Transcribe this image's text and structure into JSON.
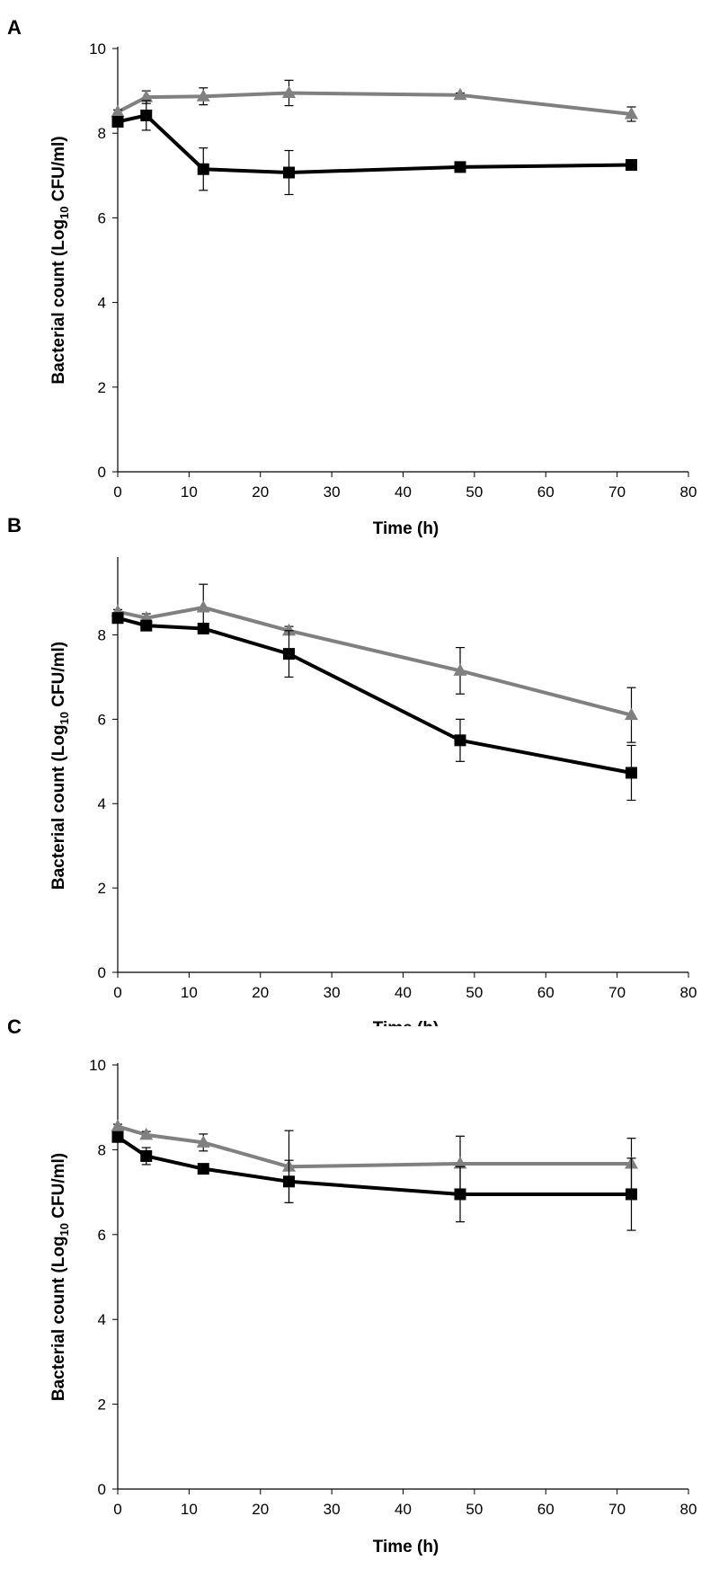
{
  "chart_data": [
    {
      "type": "line",
      "panel_label": "A",
      "xlabel": "Time (h)",
      "ylabel_main": "Bacterial count (Log",
      "ylabel_sub": "10",
      "ylabel_end": " CFU/ml)",
      "xlim": [
        0,
        80
      ],
      "ylim": [
        0,
        10
      ],
      "xticks": [
        "0",
        "10",
        "20",
        "30",
        "40",
        "50",
        "60",
        "70",
        "80"
      ],
      "yticks": [
        "0",
        "2",
        "4",
        "6",
        "8",
        "10"
      ],
      "x": [
        0,
        4,
        12,
        24,
        48,
        72
      ],
      "series": [
        {
          "name": "gray-triangle-series",
          "color": "#808080",
          "marker": "triangle",
          "values": [
            8.5,
            8.85,
            8.87,
            8.95,
            8.9,
            8.45
          ],
          "errors": [
            0.05,
            0.15,
            0.2,
            0.3,
            0.05,
            0.17
          ]
        },
        {
          "name": "black-square-series",
          "color": "#000000",
          "marker": "square",
          "values": [
            8.27,
            8.42,
            7.15,
            7.07,
            7.2,
            7.25
          ],
          "errors": [
            0.08,
            0.35,
            0.5,
            0.52,
            0.05,
            0.05
          ]
        }
      ]
    },
    {
      "type": "line",
      "panel_label": "B",
      "xlabel": "Time (h)",
      "ylabel_main": "Bacterial count (Log",
      "ylabel_sub": "10",
      "ylabel_end": " CFU/ml)",
      "xlim": [
        0,
        80
      ],
      "ylim": [
        0,
        9.8
      ],
      "xticks": [
        "0",
        "10",
        "20",
        "30",
        "40",
        "50",
        "60",
        "70",
        "80"
      ],
      "yticks": [
        "0",
        "2",
        "4",
        "6",
        "8"
      ],
      "x": [
        0,
        4,
        12,
        24,
        48,
        72
      ],
      "series": [
        {
          "name": "gray-triangle-series",
          "color": "#808080",
          "marker": "triangle",
          "values": [
            8.55,
            8.4,
            8.65,
            8.1,
            7.15,
            6.1
          ],
          "errors": [
            0.05,
            0.1,
            0.55,
            0.1,
            0.55,
            0.65
          ]
        },
        {
          "name": "black-square-series",
          "color": "#000000",
          "marker": "square",
          "values": [
            8.4,
            8.22,
            8.15,
            7.55,
            5.5,
            4.73
          ],
          "errors": [
            0.05,
            0.1,
            0.05,
            0.55,
            0.5,
            0.65
          ]
        }
      ]
    },
    {
      "type": "line",
      "panel_label": "C",
      "xlabel": "Time (h)",
      "ylabel_main": "Bacterial count (Log",
      "ylabel_sub": "10",
      "ylabel_end": " CFU/ml)",
      "xlim": [
        0,
        80
      ],
      "ylim": [
        0,
        10
      ],
      "xticks": [
        "0",
        "10",
        "20",
        "30",
        "40",
        "50",
        "60",
        "70",
        "80"
      ],
      "yticks": [
        "0",
        "2",
        "4",
        "6",
        "8",
        "10"
      ],
      "x": [
        0,
        4,
        12,
        24,
        48,
        72
      ],
      "series": [
        {
          "name": "gray-triangle-series",
          "color": "#808080",
          "marker": "triangle",
          "values": [
            8.55,
            8.35,
            8.17,
            7.6,
            7.67,
            7.67
          ],
          "errors": [
            0.05,
            0.08,
            0.2,
            0.85,
            0.65,
            0.6
          ]
        },
        {
          "name": "black-square-series",
          "color": "#000000",
          "marker": "square",
          "values": [
            8.3,
            7.85,
            7.55,
            7.25,
            6.95,
            6.95
          ],
          "errors": [
            0.05,
            0.2,
            0.08,
            0.5,
            0.65,
            0.85
          ]
        }
      ]
    }
  ]
}
